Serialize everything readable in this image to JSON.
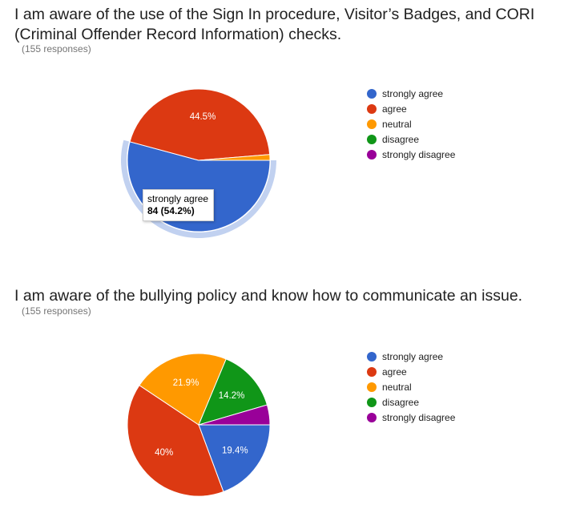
{
  "charts": [
    {
      "title": "I am aware of the use of the Sign In procedure, Visitor’s Badges, and CORI (Criminal Offender Record Information) checks.",
      "responses": "(155 responses)",
      "tooltip": {
        "label": "strongly agree",
        "value": "84 (54.2%)"
      },
      "legend": [
        "strongly agree",
        "agree",
        "neutral",
        "disagree",
        "strongly disagree"
      ]
    },
    {
      "title": "I am aware of the bullying policy and know how to communicate an issue.",
      "responses": "(155 responses)",
      "legend": [
        "strongly agree",
        "agree",
        "neutral",
        "disagree",
        "strongly disagree"
      ]
    }
  ],
  "chart_data": [
    {
      "type": "pie",
      "total": 155,
      "slices": [
        {
          "category": "strongly agree",
          "count": 84,
          "percent": 54.2,
          "label": "",
          "color": "#3366cc",
          "highlighted": true
        },
        {
          "category": "agree",
          "count": 69,
          "percent": 44.5,
          "label": "44.5%",
          "color": "#dc3912"
        },
        {
          "category": "neutral",
          "count": 2,
          "percent": 1.3,
          "label": "",
          "color": "#ff9900"
        },
        {
          "category": "disagree",
          "count": 0,
          "percent": 0,
          "label": "",
          "color": "#109618"
        },
        {
          "category": "strongly disagree",
          "count": 0,
          "percent": 0,
          "label": "",
          "color": "#990099"
        }
      ],
      "legend_placement": "right"
    },
    {
      "type": "pie",
      "total": 155,
      "slices": [
        {
          "category": "strongly agree",
          "count": 30,
          "percent": 19.4,
          "label": "19.4%",
          "color": "#3366cc"
        },
        {
          "category": "agree",
          "count": 62,
          "percent": 40.0,
          "label": "40%",
          "color": "#dc3912"
        },
        {
          "category": "neutral",
          "count": 34,
          "percent": 21.9,
          "label": "21.9%",
          "color": "#ff9900"
        },
        {
          "category": "disagree",
          "count": 22,
          "percent": 14.2,
          "label": "14.2%",
          "color": "#109618"
        },
        {
          "category": "strongly disagree",
          "count": 7,
          "percent": 4.5,
          "label": "",
          "color": "#990099"
        }
      ],
      "legend_placement": "right"
    }
  ]
}
